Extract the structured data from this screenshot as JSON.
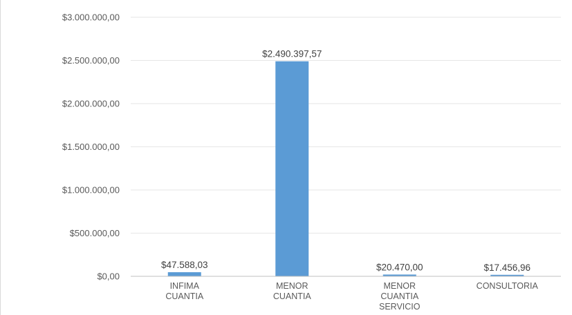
{
  "chart_data": {
    "type": "bar",
    "categories": [
      [
        "INFIMA",
        "CUANTIA"
      ],
      [
        "MENOR",
        "CUANTIA"
      ],
      [
        "MENOR",
        "CUANTIA",
        "SERVICIO"
      ],
      [
        "CONSULTORIA"
      ]
    ],
    "values": [
      47588.03,
      2490397.57,
      20470.0,
      17456.96
    ],
    "data_labels": [
      "$47.588,03",
      "$2.490.397,57",
      "$20.470,00",
      "$17.456,96"
    ],
    "y_ticks": [
      0,
      500000,
      1000000,
      1500000,
      2000000,
      2500000,
      3000000
    ],
    "y_tick_labels": [
      "$0,00",
      "$500.000,00",
      "$1.000.000,00",
      "$1.500.000,00",
      "$2.000.000,00",
      "$2.500.000,00",
      "$3.000.000,00"
    ],
    "ylim": [
      0,
      3000000
    ],
    "grid": true,
    "legend": "none",
    "title": "",
    "xlabel": "",
    "ylabel": "",
    "colors": {
      "bar": "#5b9bd5",
      "grid": "#e6e6e6",
      "axis": "#bfbfbf",
      "tick_text": "#595959",
      "data_label_text": "#404040"
    }
  }
}
